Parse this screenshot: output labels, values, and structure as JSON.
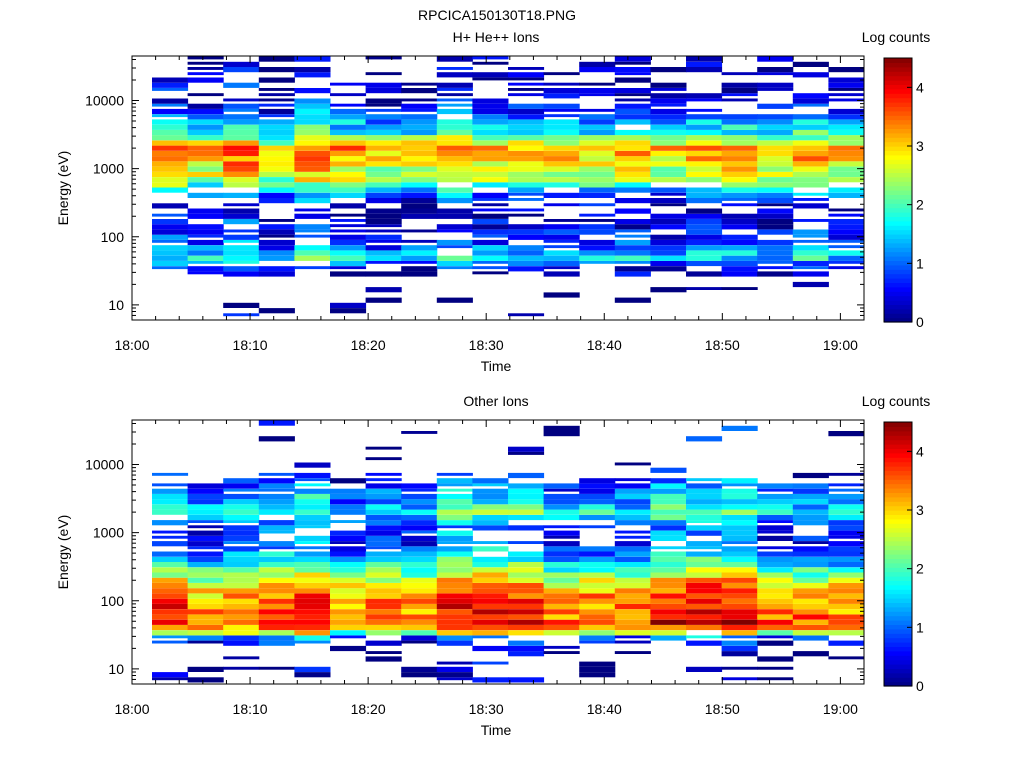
{
  "figure_title": "RPCICA150130T18.PNG",
  "colormap": [
    "#000080",
    "#0000ff",
    "#0080ff",
    "#00ffff",
    "#80ff80",
    "#ffff00",
    "#ff8000",
    "#ff0000",
    "#800000"
  ],
  "chart_data": [
    {
      "type": "heatmap",
      "title": "H+ He++ Ions",
      "xlabel": "Time",
      "ylabel": "Energy (eV)",
      "y_scale": "log",
      "ylim": [
        6,
        45000
      ],
      "xlim": [
        "18:00",
        "19:02"
      ],
      "x_ticks": [
        "18:00",
        "18:10",
        "18:20",
        "18:30",
        "18:40",
        "18:50",
        "19:00"
      ],
      "y_ticks": [
        "10",
        "100",
        "1000",
        "10000"
      ],
      "colorbar": {
        "label": "Log counts",
        "range": [
          0,
          4.5
        ],
        "ticks": [
          "0",
          "1",
          "2",
          "3",
          "4"
        ]
      },
      "time_bins": [
        "18:02",
        "18:05",
        "18:08",
        "18:12",
        "18:15",
        "18:18",
        "18:21",
        "18:24",
        "18:28",
        "18:31",
        "18:34",
        "18:37",
        "18:40",
        "18:44",
        "18:47",
        "18:50",
        "18:53",
        "18:56",
        "18:59",
        "19:01"
      ],
      "profile": [
        {
          "energy": 40000,
          "level": 0.2,
          "fill": 0.45
        },
        {
          "energy": 20000,
          "level": 0.3,
          "fill": 0.55
        },
        {
          "energy": 10000,
          "level": 0.4,
          "fill": 0.6
        },
        {
          "energy": 5000,
          "level": 1.3,
          "fill": 0.95
        },
        {
          "energy": 3000,
          "level": 2.0,
          "fill": 1.0
        },
        {
          "energy": 2000,
          "level": 3.4,
          "fill": 1.0
        },
        {
          "energy": 1000,
          "level": 2.8,
          "fill": 1.0
        },
        {
          "energy": 700,
          "level": 2.6,
          "fill": 1.0
        },
        {
          "energy": 400,
          "level": 1.0,
          "fill": 0.85
        },
        {
          "energy": 250,
          "level": 0.3,
          "fill": 0.55
        },
        {
          "energy": 150,
          "level": 0.5,
          "fill": 0.75
        },
        {
          "energy": 80,
          "level": 0.8,
          "fill": 0.95
        },
        {
          "energy": 50,
          "level": 1.7,
          "fill": 1.0
        },
        {
          "energy": 35,
          "level": 0.6,
          "fill": 0.9
        },
        {
          "energy": 25,
          "level": 0.1,
          "fill": 0.12
        },
        {
          "energy": 12,
          "level": 0.0,
          "fill": 0.12
        },
        {
          "energy": 7,
          "level": 0.0,
          "fill": 0.1
        }
      ]
    },
    {
      "type": "heatmap",
      "title": "Other Ions",
      "xlabel": "Time",
      "ylabel": "Energy (eV)",
      "y_scale": "log",
      "ylim": [
        6,
        45000
      ],
      "xlim": [
        "18:00",
        "19:02"
      ],
      "x_ticks": [
        "18:00",
        "18:10",
        "18:20",
        "18:30",
        "18:40",
        "18:50",
        "19:00"
      ],
      "y_ticks": [
        "10",
        "100",
        "1000",
        "10000"
      ],
      "colorbar": {
        "label": "Log counts",
        "range": [
          0,
          4.5
        ],
        "ticks": [
          "0",
          "1",
          "2",
          "3",
          "4"
        ]
      },
      "time_bins": [
        "18:02",
        "18:05",
        "18:08",
        "18:12",
        "18:15",
        "18:18",
        "18:21",
        "18:24",
        "18:28",
        "18:31",
        "18:34",
        "18:37",
        "18:40",
        "18:44",
        "18:47",
        "18:50",
        "18:53",
        "18:56",
        "18:59",
        "19:01"
      ],
      "profile": [
        {
          "energy": 8000,
          "level": 0.2,
          "fill": 0.08
        },
        {
          "energy": 5000,
          "level": 1.0,
          "fill": 0.95
        },
        {
          "energy": 3000,
          "level": 1.3,
          "fill": 1.0
        },
        {
          "energy": 2000,
          "level": 1.9,
          "fill": 1.0
        },
        {
          "energy": 1200,
          "level": 0.9,
          "fill": 0.8
        },
        {
          "energy": 700,
          "level": 0.9,
          "fill": 0.85
        },
        {
          "energy": 400,
          "level": 1.5,
          "fill": 1.0
        },
        {
          "energy": 250,
          "level": 2.4,
          "fill": 1.0
        },
        {
          "energy": 150,
          "level": 3.3,
          "fill": 1.0
        },
        {
          "energy": 90,
          "level": 3.5,
          "fill": 1.0
        },
        {
          "energy": 60,
          "level": 3.7,
          "fill": 1.0
        },
        {
          "energy": 45,
          "level": 3.9,
          "fill": 1.0
        },
        {
          "energy": 35,
          "level": 2.8,
          "fill": 1.0
        },
        {
          "energy": 28,
          "level": 0.9,
          "fill": 0.9
        },
        {
          "energy": 20,
          "level": 0.2,
          "fill": 0.3
        },
        {
          "energy": 14,
          "level": 0.1,
          "fill": 0.25
        },
        {
          "energy": 8,
          "level": 0.0,
          "fill": 0.3
        }
      ]
    }
  ]
}
